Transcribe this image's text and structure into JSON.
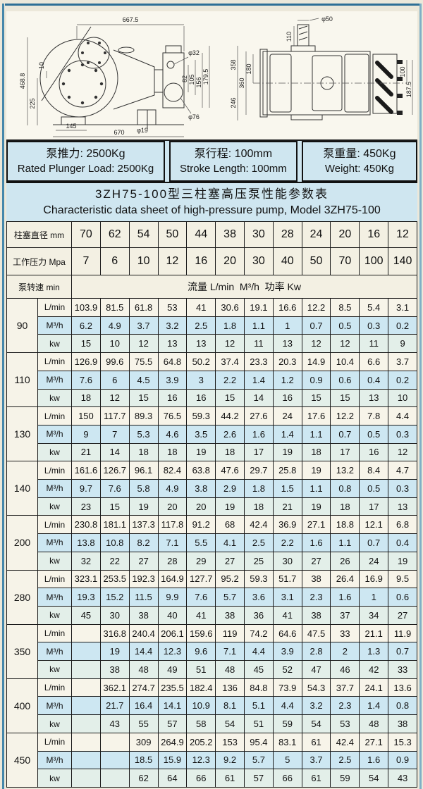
{
  "page": {
    "background": "#ece8da",
    "frame_color": "#2e6f96",
    "band_color": "#cfe6f0",
    "row_lmin_color": "#f7f4e9",
    "row_m3h_color": "#cde7f2",
    "row_kw_color": "#e3efe9"
  },
  "drawings": {
    "side_view": {
      "dim_top_width": "667.5",
      "dim_height": "468.8",
      "dim_225": "225",
      "dim_10": "10",
      "dim_145": "145",
      "dim_bottom_width": "670",
      "dim_d19": "φ19",
      "dim_d76": "φ76",
      "dim_d32": "φ32",
      "dim_82": "82",
      "dim_105": "105",
      "dim_156": "156",
      "dim_179_5": "179.5"
    },
    "top_view": {
      "dim_d50": "φ50",
      "dim_110": "110",
      "dim_358": "358",
      "dim_360": "360",
      "dim_180": "180",
      "dim_246": "246",
      "dim_100": "100",
      "dim_187_5": "187.5"
    }
  },
  "info_boxes": [
    {
      "cn": "泵推力: 2500Kg",
      "en": "Rated Plunger Load: 2500Kg"
    },
    {
      "cn": "泵行程: 100mm",
      "en": "Stroke Length: 100mm"
    },
    {
      "cn": "泵重量: 450Kg",
      "en": "Weight: 450Kg"
    }
  ],
  "title": {
    "cn": "3ZH75-100型三柱塞高压泵性能参数表",
    "en": "Characteristic data sheet of high-pressure pump, Model 3ZH75-100"
  },
  "table": {
    "header": {
      "diameter_label": "柱塞直径 mm",
      "diameters": [
        "70",
        "62",
        "54",
        "50",
        "44",
        "38",
        "30",
        "28",
        "24",
        "20",
        "16",
        "12"
      ],
      "pressure_label": "工作压力 Mpa",
      "pressures": [
        "7",
        "6",
        "10",
        "12",
        "16",
        "20",
        "30",
        "40",
        "50",
        "70",
        "100",
        "140"
      ],
      "speed_label": "泵转速 min",
      "units_label": "流量 L/min  M³/h  功率 Kw"
    },
    "row_units": [
      "L/min",
      "M³/h",
      "kw"
    ],
    "groups": [
      {
        "speed": "90",
        "lmin": [
          "103.9",
          "81.5",
          "61.8",
          "53",
          "41",
          "30.6",
          "19.1",
          "16.6",
          "12.2",
          "8.5",
          "5.4",
          "3.1"
        ],
        "m3h": [
          "6.2",
          "4.9",
          "3.7",
          "3.2",
          "2.5",
          "1.8",
          "1.1",
          "1",
          "0.7",
          "0.5",
          "0.3",
          "0.2"
        ],
        "kw": [
          "15",
          "10",
          "12",
          "13",
          "13",
          "12",
          "11",
          "13",
          "12",
          "12",
          "11",
          "9"
        ]
      },
      {
        "speed": "110",
        "lmin": [
          "126.9",
          "99.6",
          "75.5",
          "64.8",
          "50.2",
          "37.4",
          "23.3",
          "20.3",
          "14.9",
          "10.4",
          "6.6",
          "3.7"
        ],
        "m3h": [
          "7.6",
          "6",
          "4.5",
          "3.9",
          "3",
          "2.2",
          "1.4",
          "1.2",
          "0.9",
          "0.6",
          "0.4",
          "0.2"
        ],
        "kw": [
          "18",
          "12",
          "15",
          "16",
          "16",
          "15",
          "14",
          "16",
          "15",
          "15",
          "13",
          "10"
        ]
      },
      {
        "speed": "130",
        "lmin": [
          "150",
          "117.7",
          "89.3",
          "76.5",
          "59.3",
          "44.2",
          "27.6",
          "24",
          "17.6",
          "12.2",
          "7.8",
          "4.4"
        ],
        "m3h": [
          "9",
          "7",
          "5.3",
          "4.6",
          "3.5",
          "2.6",
          "1.6",
          "1.4",
          "1.1",
          "0.7",
          "0.5",
          "0.3"
        ],
        "kw": [
          "21",
          "14",
          "18",
          "18",
          "19",
          "18",
          "17",
          "19",
          "18",
          "17",
          "16",
          "12"
        ]
      },
      {
        "speed": "140",
        "lmin": [
          "161.6",
          "126.7",
          "96.1",
          "82.4",
          "63.8",
          "47.6",
          "29.7",
          "25.8",
          "19",
          "13.2",
          "8.4",
          "4.7"
        ],
        "m3h": [
          "9.7",
          "7.6",
          "5.8",
          "4.9",
          "3.8",
          "2.9",
          "1.8",
          "1.5",
          "1.1",
          "0.8",
          "0.5",
          "0.3"
        ],
        "kw": [
          "23",
          "15",
          "19",
          "20",
          "20",
          "19",
          "18",
          "21",
          "19",
          "18",
          "17",
          "13"
        ]
      },
      {
        "speed": "200",
        "lmin": [
          "230.8",
          "181.1",
          "137.3",
          "117.8",
          "91.2",
          "68",
          "42.4",
          "36.9",
          "27.1",
          "18.8",
          "12.1",
          "6.8"
        ],
        "m3h": [
          "13.8",
          "10.8",
          "8.2",
          "7.1",
          "5.5",
          "4.1",
          "2.5",
          "2.2",
          "1.6",
          "1.1",
          "0.7",
          "0.4"
        ],
        "kw": [
          "32",
          "22",
          "27",
          "28",
          "29",
          "27",
          "25",
          "30",
          "27",
          "26",
          "24",
          "19"
        ]
      },
      {
        "speed": "280",
        "lmin": [
          "323.1",
          "253.5",
          "192.3",
          "164.9",
          "127.7",
          "95.2",
          "59.3",
          "51.7",
          "38",
          "26.4",
          "16.9",
          "9.5"
        ],
        "m3h": [
          "19.3",
          "15.2",
          "11.5",
          "9.9",
          "7.6",
          "5.7",
          "3.6",
          "3.1",
          "2.3",
          "1.6",
          "1",
          "0.6"
        ],
        "kw": [
          "45",
          "30",
          "38",
          "40",
          "41",
          "38",
          "36",
          "41",
          "38",
          "37",
          "34",
          "27"
        ]
      },
      {
        "speed": "350",
        "lmin": [
          "",
          "316.8",
          "240.4",
          "206.1",
          "159.6",
          "119",
          "74.2",
          "64.6",
          "47.5",
          "33",
          "21.1",
          "11.9"
        ],
        "m3h": [
          "",
          "19",
          "14.4",
          "12.3",
          "9.6",
          "7.1",
          "4.4",
          "3.9",
          "2.8",
          "2",
          "1.3",
          "0.7"
        ],
        "kw": [
          "",
          "38",
          "48",
          "49",
          "51",
          "48",
          "45",
          "52",
          "47",
          "46",
          "42",
          "33"
        ]
      },
      {
        "speed": "400",
        "lmin": [
          "",
          "362.1",
          "274.7",
          "235.5",
          "182.4",
          "136",
          "84.8",
          "73.9",
          "54.3",
          "37.7",
          "24.1",
          "13.6"
        ],
        "m3h": [
          "",
          "21.7",
          "16.4",
          "14.1",
          "10.9",
          "8.1",
          "5.1",
          "4.4",
          "3.2",
          "2.3",
          "1.4",
          "0.8"
        ],
        "kw": [
          "",
          "43",
          "55",
          "57",
          "58",
          "54",
          "51",
          "59",
          "54",
          "53",
          "48",
          "38"
        ]
      },
      {
        "speed": "450",
        "lmin": [
          "",
          "",
          "309",
          "264.9",
          "205.2",
          "153",
          "95.4",
          "83.1",
          "61",
          "42.4",
          "27.1",
          "15.3"
        ],
        "m3h": [
          "",
          "",
          "18.5",
          "15.9",
          "12.3",
          "9.2",
          "5.7",
          "5",
          "3.7",
          "2.5",
          "1.6",
          "0.9"
        ],
        "kw": [
          "",
          "",
          "62",
          "64",
          "66",
          "61",
          "57",
          "66",
          "61",
          "59",
          "54",
          "43"
        ]
      }
    ]
  }
}
